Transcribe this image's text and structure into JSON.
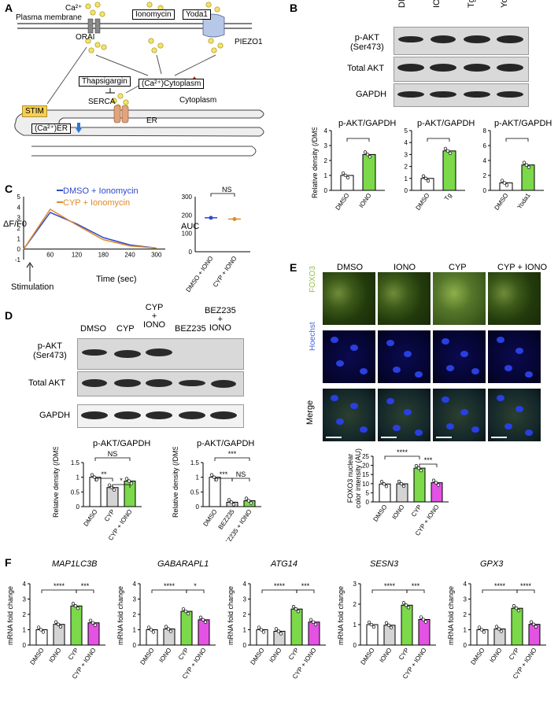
{
  "panels": {
    "A": {
      "letter": "A",
      "labels": {
        "ca": "Ca²⁺",
        "plasma_membrane": "Plasma membrane",
        "ionomycin": "Ionomycin",
        "yoda1": "Yoda1",
        "orai": "ORAI",
        "piezo1": "PIEZO1",
        "thapsigargin": "Thapsigargin",
        "serca": "SERCA",
        "ca_cytoplasm": "(Ca²⁺)Cytoplasm",
        "cytoplasm": "Cytoplasm",
        "stim": "STIM",
        "er": "ER",
        "ca_er": "(Ca²⁺)ER"
      }
    },
    "B": {
      "letter": "B",
      "lanes": [
        "DMSO",
        "IONO",
        "Tg",
        "Yoda1"
      ],
      "blot_rows": [
        "p-AKT\n(Ser473)",
        "Total AKT",
        "GAPDH"
      ],
      "charts": [
        {
          "title": "p-AKT/GAPDH",
          "categories": [
            "DMSO",
            "IONO"
          ],
          "values": [
            1.0,
            2.4
          ],
          "sig": "*"
        },
        {
          "title": "p-AKT/GAPDH",
          "categories": [
            "DMSO",
            "Tg"
          ],
          "values": [
            1.0,
            3.3
          ],
          "sig": "*"
        },
        {
          "title": "p-AKT/GAPDH",
          "categories": [
            "DMSO",
            "Yoda1"
          ],
          "values": [
            1.0,
            3.4
          ],
          "sig": "*"
        }
      ],
      "ylabel": "Relative density (/DMSO)"
    },
    "C": {
      "letter": "C",
      "ylabel": "ΔF/F0",
      "xlabel": "Time (sec)",
      "legend": [
        "DMSO + Ionomycin",
        "CYP + Ionomycin"
      ],
      "stimulation": "Stimulation",
      "auc_ylabel": "AUC",
      "auc_categories": [
        "DMSO + IONO",
        "CYP + IONO"
      ],
      "auc_sig": "NS"
    },
    "D": {
      "letter": "D",
      "lanes": [
        "DMSO",
        "CYP",
        "CYP\n+\nIONO",
        "BEZ235",
        "BEZ235\n+\nIONO"
      ],
      "blot_rows": [
        "p-AKT\n(Ser473)",
        "Total AKT",
        "GAPDH"
      ],
      "ylabel": "Relative density (/DMSO)",
      "chart_titles": [
        "p-AKT/GAPDH",
        "p-AKT/GAPDH"
      ]
    },
    "E": {
      "letter": "E",
      "columns": [
        "DMSO",
        "IONO",
        "CYP",
        "CYP + IONO"
      ],
      "rows": [
        "FOXO3",
        "Hoechst",
        "Merge"
      ],
      "ylabel": "FOXO3 nuclear color intensity (AU)"
    },
    "F": {
      "letter": "F",
      "ylabel": "mRNA fold change",
      "genes": [
        "MAP1LC3B",
        "GABARAPL1",
        "ATG14",
        "SESN3",
        "GPX3"
      ]
    }
  },
  "chart_data": [
    {
      "type": "bar",
      "panel": "B1",
      "title": "p-AKT/GAPDH",
      "categories": [
        "DMSO",
        "IONO"
      ],
      "values": [
        1.0,
        2.4
      ],
      "ylabel": "Relative density (/DMSO)",
      "ylim": [
        0,
        4
      ]
    },
    {
      "type": "bar",
      "panel": "B2",
      "title": "p-AKT/GAPDH",
      "categories": [
        "DMSO",
        "Tg"
      ],
      "values": [
        1.0,
        3.3
      ],
      "ylabel": "Relative density (/DMSO)",
      "ylim": [
        0,
        5
      ]
    },
    {
      "type": "bar",
      "panel": "B3",
      "title": "p-AKT/GAPDH",
      "categories": [
        "DMSO",
        "Yoda1"
      ],
      "values": [
        1.0,
        3.4
      ],
      "ylabel": "Relative density (/DMSO)",
      "ylim": [
        0,
        8
      ]
    },
    {
      "type": "line",
      "panel": "C",
      "xlabel": "Time (sec)",
      "ylabel": "ΔF/F0",
      "x": [
        0,
        60,
        120,
        180,
        240,
        300
      ],
      "series": [
        {
          "name": "DMSO + Ionomycin",
          "values": [
            0,
            3.5,
            2.4,
            1.1,
            0.4,
            0.1
          ]
        },
        {
          "name": "CYP + Ionomycin",
          "values": [
            0,
            3.8,
            2.3,
            0.9,
            0.3,
            0.1
          ]
        }
      ],
      "ylim": [
        -1,
        5
      ],
      "xlim": [
        0,
        320
      ]
    },
    {
      "type": "scatter",
      "panel": "C-AUC",
      "categories": [
        "DMSO + IONO",
        "CYP + IONO"
      ],
      "values": [
        185,
        178
      ],
      "ylabel": "AUC",
      "ylim": [
        0,
        300
      ],
      "sig": "NS"
    },
    {
      "type": "bar",
      "panel": "D1",
      "title": "p-AKT/GAPDH",
      "categories": [
        "DMSO",
        "CYP",
        "CYP + IONO"
      ],
      "values": [
        1.0,
        0.65,
        0.87
      ],
      "ylim": [
        0,
        1.5
      ],
      "sig": [
        "**",
        "*",
        "NS"
      ]
    },
    {
      "type": "bar",
      "panel": "D2",
      "title": "p-AKT/GAPDH",
      "categories": [
        "DMSO",
        "BEZ235",
        "BEZ235 + IONO"
      ],
      "values": [
        1.0,
        0.15,
        0.2
      ],
      "ylim": [
        0,
        1.5
      ],
      "sig": [
        "***",
        "NS",
        "***"
      ]
    },
    {
      "type": "bar",
      "panel": "E",
      "categories": [
        "DMSO",
        "IONO",
        "CYP",
        "CYP + IONO"
      ],
      "values": [
        9.8,
        9.9,
        18.5,
        10.5
      ],
      "ylim": [
        0,
        25
      ],
      "sig": [
        "****",
        "***"
      ]
    },
    {
      "type": "bar",
      "panel": "F-MAP1LC3B",
      "title": "MAP1LC3B",
      "categories": [
        "DMSO",
        "IONO",
        "CYP",
        "CYP + IONO"
      ],
      "values": [
        1.0,
        1.35,
        2.55,
        1.45
      ],
      "ylim": [
        0,
        4
      ],
      "sig": [
        "****",
        "***"
      ]
    },
    {
      "type": "bar",
      "panel": "F-GABARAPL1",
      "title": "GABARAPL1",
      "categories": [
        "DMSO",
        "IONO",
        "CYP",
        "CYP + IONO"
      ],
      "values": [
        1.0,
        1.05,
        2.2,
        1.65
      ],
      "ylim": [
        0,
        4
      ],
      "sig": [
        "****",
        "*"
      ]
    },
    {
      "type": "bar",
      "panel": "F-ATG14",
      "title": "ATG14",
      "categories": [
        "DMSO",
        "IONO",
        "CYP",
        "CYP + IONO"
      ],
      "values": [
        1.0,
        0.9,
        2.35,
        1.5
      ],
      "ylim": [
        0,
        4
      ],
      "sig": [
        "****",
        "***"
      ]
    },
    {
      "type": "bar",
      "panel": "F-SESN3",
      "title": "SESN3",
      "categories": [
        "DMSO",
        "IONO",
        "CYP",
        "CYP + IONO"
      ],
      "values": [
        1.0,
        0.97,
        1.95,
        1.25
      ],
      "ylim": [
        0,
        3
      ],
      "sig": [
        "****",
        "***"
      ]
    },
    {
      "type": "bar",
      "panel": "F-GPX3",
      "title": "GPX3",
      "categories": [
        "DMSO",
        "IONO",
        "CYP",
        "CYP + IONO"
      ],
      "values": [
        1.0,
        1.05,
        2.4,
        1.35
      ],
      "ylim": [
        0,
        4
      ],
      "sig": [
        "****",
        "****"
      ]
    }
  ]
}
